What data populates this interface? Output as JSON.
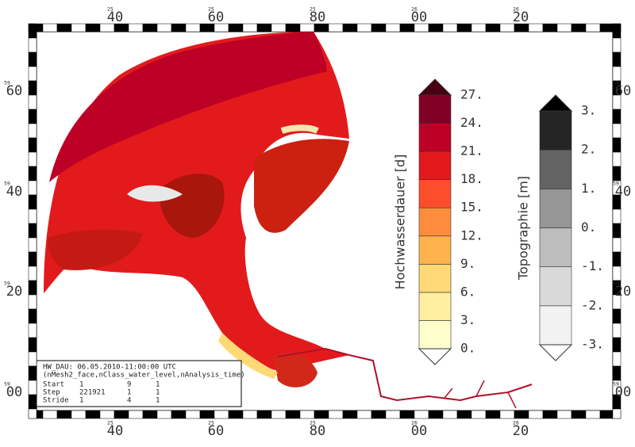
{
  "frame": {
    "lon_labels": [
      {
        "prefix": "25",
        "label": "40"
      },
      {
        "prefix": "25",
        "label": "60"
      },
      {
        "prefix": "25",
        "label": "80"
      },
      {
        "prefix": "26",
        "label": "00"
      },
      {
        "prefix": "26",
        "label": "20"
      }
    ],
    "lat_labels": [
      {
        "prefix": "59",
        "label": "60"
      },
      {
        "prefix": "59",
        "label": "40"
      },
      {
        "prefix": "59",
        "label": "20"
      },
      {
        "prefix": "59",
        "label": "00"
      }
    ]
  },
  "legends": [
    {
      "title": "Hochwasserdauer [d]",
      "labels": [
        "0.",
        "3.",
        "6.",
        "9.",
        "12.",
        "15.",
        "18.",
        "21.",
        "24.",
        "27."
      ],
      "colors": [
        "#ffffcc",
        "#ffeda0",
        "#fed976",
        "#feb24c",
        "#fd8d3c",
        "#fc4e2a",
        "#e31a1c",
        "#bd0026",
        "#800026"
      ],
      "over_color": "#4a0010"
    },
    {
      "title": "Topographie [m]",
      "labels": [
        "-3.",
        "-2.",
        "-1.",
        "0.",
        "1.",
        "2.",
        "3."
      ],
      "colors": [
        "#f2f2f2",
        "#d9d9d9",
        "#bdbdbd",
        "#969696",
        "#636363",
        "#252525"
      ],
      "over_color": "#000000"
    }
  ],
  "info": {
    "header": "HW_DAU: 06.05.2010-11:00:00 UTC",
    "dims": "(nMesh2_face,nClass_water_level,nAnalysis_time)",
    "rows": [
      [
        "Start",
        "1",
        "9",
        "1"
      ],
      [
        "Step",
        "221921",
        "1",
        "1"
      ],
      [
        "Stride",
        "1",
        "4",
        "1"
      ]
    ]
  }
}
